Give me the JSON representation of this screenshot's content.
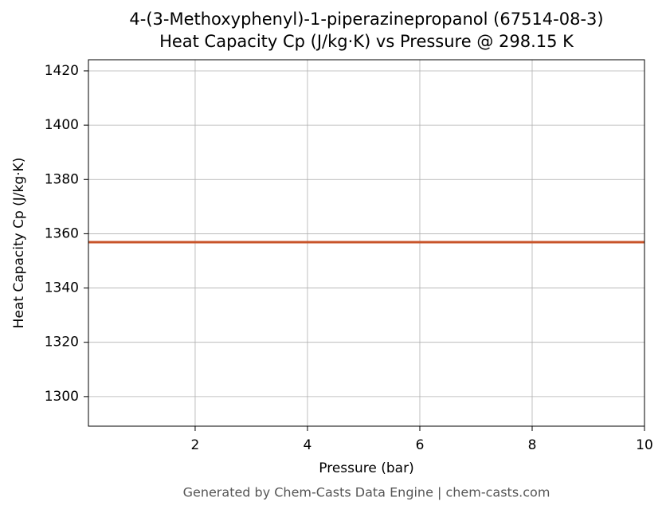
{
  "chart_data": {
    "type": "line",
    "title": "4-(3-Methoxyphenyl)-1-piperazinepropanol (67514-08-3)",
    "subtitle": "Heat Capacity Cp (J/kg·K) vs Pressure @ 298.15 K",
    "xlabel": "Pressure (bar)",
    "ylabel": "Heat Capacity Cp (J/kg·K)",
    "footer": "Generated by Chem-Casts Data Engine | chem-casts.com",
    "x": [
      0.1,
      10
    ],
    "series": [
      {
        "name": "Cp",
        "color": "#c8542a",
        "values": [
          1356.9,
          1356.9
        ]
      }
    ],
    "xlim": [
      0.1,
      10
    ],
    "xticks": [
      2,
      4,
      6,
      8,
      10
    ],
    "ylim": [
      1289.1,
      1424.1
    ],
    "yticks": [
      1300,
      1320,
      1340,
      1360,
      1380,
      1400,
      1420
    ],
    "grid": true
  }
}
